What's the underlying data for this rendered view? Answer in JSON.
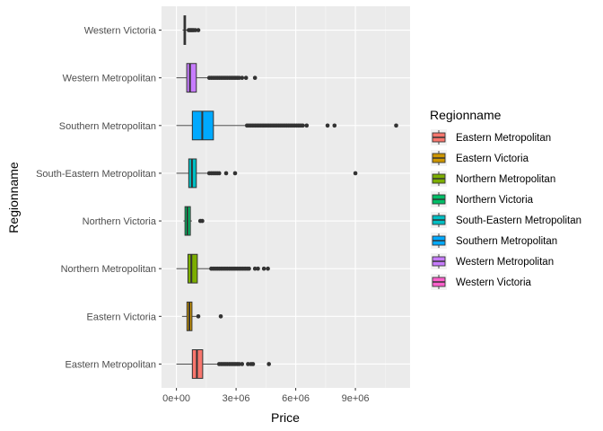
{
  "chart_data": {
    "type": "boxplot",
    "orientation": "horizontal",
    "xlabel": "Price",
    "ylabel": "Regionname",
    "xlim": [
      -750000,
      11750000
    ],
    "x_ticks": [
      {
        "value": 0,
        "label": "0e+00"
      },
      {
        "value": 3000000,
        "label": "3e+06"
      },
      {
        "value": 6000000,
        "label": "6e+06"
      },
      {
        "value": 9000000,
        "label": "9e+06"
      }
    ],
    "grid": true,
    "legend": {
      "title": "Regionname",
      "position": "right",
      "entries": [
        {
          "label": "Eastern Metropolitan",
          "color": "#F8766D"
        },
        {
          "label": "Eastern Victoria",
          "color": "#CD9600"
        },
        {
          "label": "Northern Metropolitan",
          "color": "#7CAE00"
        },
        {
          "label": "Northern Victoria",
          "color": "#00BE67"
        },
        {
          "label": "South-Eastern Metropolitan",
          "color": "#00BFC4"
        },
        {
          "label": "Southern Metropolitan",
          "color": "#00A9FF"
        },
        {
          "label": "Western Metropolitan",
          "color": "#C77CFF"
        },
        {
          "label": "Western Victoria",
          "color": "#FF61CC"
        }
      ]
    },
    "boxes": [
      {
        "category": "Eastern Metropolitan",
        "color": "#F8766D",
        "whisker_low": 0,
        "q1": 800000,
        "median": 1030000,
        "q3": 1320000,
        "whisker_high": 2080000,
        "outliers": [
          2150000,
          2250000,
          2350000,
          2450000,
          2550000,
          2650000,
          2750000,
          2850000,
          2950000,
          3050000,
          3150000,
          3300000,
          3600000,
          3750000,
          3850000,
          4650000
        ]
      },
      {
        "category": "Eastern Victoria",
        "color": "#CD9600",
        "whisker_low": 280000,
        "q1": 530000,
        "median": 650000,
        "q3": 780000,
        "whisker_high": 1050000,
        "outliers": [
          1100000,
          2230000
        ]
      },
      {
        "category": "Northern Metropolitan",
        "color": "#7CAE00",
        "whisker_low": 0,
        "q1": 580000,
        "median": 750000,
        "q3": 1050000,
        "whisker_high": 1680000,
        "outliers": [
          1750000,
          1850000,
          1950000,
          2050000,
          2150000,
          2250000,
          2350000,
          2450000,
          2550000,
          2650000,
          2750000,
          2850000,
          2950000,
          3050000,
          3150000,
          3250000,
          3350000,
          3450000,
          3550000,
          3650000,
          3950000,
          4100000,
          4400000,
          4600000
        ]
      },
      {
        "category": "Northern Victoria",
        "color": "#00BE67",
        "whisker_low": 350000,
        "q1": 430000,
        "median": 550000,
        "q3": 700000,
        "whisker_high": 780000,
        "outliers": [
          1200000,
          1300000
        ]
      },
      {
        "category": "South-Eastern Metropolitan",
        "color": "#00BFC4",
        "whisker_low": 0,
        "q1": 620000,
        "median": 780000,
        "q3": 1000000,
        "whisker_high": 1550000,
        "outliers": [
          1650000,
          1750000,
          1850000,
          1950000,
          2050000,
          2150000,
          2500000,
          2950000,
          9000000
        ]
      },
      {
        "category": "Southern Metropolitan",
        "color": "#00A9FF",
        "whisker_low": 0,
        "q1": 800000,
        "median": 1300000,
        "q3": 1860000,
        "whisker_high": 3450000,
        "outliers": [
          3550000,
          3650000,
          3750000,
          3850000,
          3950000,
          4050000,
          4150000,
          4250000,
          4350000,
          4450000,
          4550000,
          4650000,
          4750000,
          4850000,
          4950000,
          5050000,
          5150000,
          5250000,
          5350000,
          5450000,
          5550000,
          5650000,
          5750000,
          5850000,
          5950000,
          6050000,
          6150000,
          6250000,
          6350000,
          6550000,
          7600000,
          7950000,
          11050000
        ]
      },
      {
        "category": "Western Metropolitan",
        "color": "#C77CFF",
        "whisker_low": 0,
        "q1": 520000,
        "median": 680000,
        "q3": 1000000,
        "whisker_high": 1580000,
        "outliers": [
          1650000,
          1750000,
          1850000,
          1950000,
          2050000,
          2150000,
          2250000,
          2350000,
          2450000,
          2550000,
          2650000,
          2750000,
          2850000,
          2950000,
          3050000,
          3150000,
          3300000,
          3500000,
          3950000
        ]
      },
      {
        "category": "Western Victoria",
        "color": "#FF61CC",
        "whisker_low": 310000,
        "q1": 380000,
        "median": 420000,
        "q3": 460000,
        "whisker_high": 560000,
        "outliers": [
          620000,
          680000,
          740000,
          800000,
          860000,
          950000,
          1100000
        ]
      }
    ]
  }
}
